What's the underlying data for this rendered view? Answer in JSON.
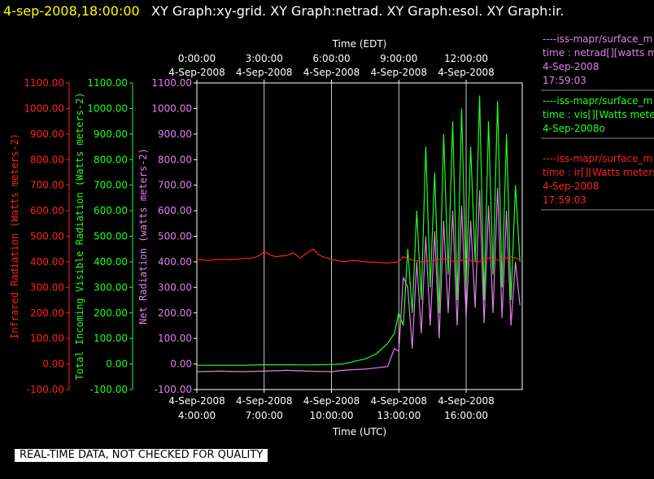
{
  "header": {
    "datetime": "4-sep-2008,18:00:00",
    "titles": "XY Graph:xy-grid.  XY Graph:netrad.  XY Graph:esol.  XY Graph:ir."
  },
  "notice": "REAL-TIME DATA, NOT CHECKED FOR QUALITY",
  "colors": {
    "background": "#000000",
    "infrared": "#ff2020",
    "visible": "#20ff20",
    "net": "#e080e8",
    "axis": "#ffffff",
    "header_date": "#ffff00"
  },
  "chart_data": {
    "type": "line",
    "x_axis_top": {
      "label": "Time (EDT)",
      "ticks": [
        {
          "time": "0:00:00",
          "date": "4-Sep-2008"
        },
        {
          "time": "3:00:00",
          "date": "4-Sep-2008"
        },
        {
          "time": "6:00:00",
          "date": "4-Sep-2008"
        },
        {
          "time": "9:00:00",
          "date": "4-Sep-2008"
        },
        {
          "time": "12:00:00",
          "date": "4-Sep-2008"
        }
      ]
    },
    "x_axis_bottom": {
      "label": "Time (UTC)",
      "ticks": [
        {
          "hour": 4,
          "date": "4-Sep-2008",
          "time": "4:00:00"
        },
        {
          "hour": 7,
          "date": "4-Sep-2008",
          "time": "7:00:00"
        },
        {
          "hour": 10,
          "date": "4-Sep-2008",
          "time": "10:00:00"
        },
        {
          "hour": 13,
          "date": "4-Sep-2008",
          "time": "13:00:00"
        },
        {
          "hour": 16,
          "date": "4-Sep-2008",
          "time": "16:00:00"
        }
      ],
      "xlim_hours_utc": [
        4,
        18.5
      ]
    },
    "y_axes": [
      {
        "id": "infrared",
        "label": "Infrared Radiation (Watts meters-2)",
        "ylim": [
          -100,
          1100
        ],
        "ticks": [
          "-100.00",
          "0.00",
          "100.00",
          "200.00",
          "300.00",
          "400.00",
          "500.00",
          "600.00",
          "700.00",
          "800.00",
          "900.00",
          "1000.00",
          "1100.00"
        ]
      },
      {
        "id": "visible",
        "label": "Total Incoming Visible Radiation (Watts meters-2)",
        "ylim": [
          -100,
          1100
        ],
        "ticks": [
          "-100.00",
          "0.00",
          "100.00",
          "200.00",
          "300.00",
          "400.00",
          "500.00",
          "600.00",
          "700.00",
          "800.00",
          "900.00",
          "1000.00",
          "1100.00"
        ]
      },
      {
        "id": "net",
        "label": "Net Radiation (watts meters-2)",
        "ylim": [
          -100,
          1100
        ],
        "ticks": [
          "-100.00",
          "0.00",
          "100.00",
          "200.00",
          "300.00",
          "400.00",
          "500.00",
          "600.00",
          "700.00",
          "800.00",
          "900.00",
          "1000.00",
          "1100.00"
        ]
      }
    ],
    "grid_x_hours_utc": [
      7,
      10,
      13,
      16
    ],
    "series": [
      {
        "id": "infrared",
        "x": [
          4.0,
          4.5,
          5.0,
          5.5,
          6.0,
          6.5,
          6.8,
          7.0,
          7.2,
          7.5,
          8.0,
          8.3,
          8.6,
          9.0,
          9.2,
          9.4,
          9.6,
          10.0,
          10.5,
          11.0,
          11.5,
          12.0,
          12.5,
          13.0,
          13.2,
          13.5,
          14.0,
          14.5,
          15.0,
          15.5,
          16.0,
          16.5,
          17.0,
          17.5,
          18.0,
          18.4
        ],
        "y": [
          410,
          405,
          410,
          408,
          412,
          415,
          425,
          440,
          430,
          420,
          425,
          435,
          415,
          440,
          450,
          430,
          420,
          410,
          400,
          405,
          400,
          398,
          395,
          400,
          420,
          410,
          400,
          405,
          412,
          400,
          410,
          398,
          415,
          405,
          420,
          410
        ]
      },
      {
        "id": "visible",
        "x": [
          4.0,
          5.0,
          6.0,
          7.0,
          8.0,
          9.0,
          10.0,
          10.5,
          11.0,
          11.5,
          12.0,
          12.5,
          12.8,
          13.0,
          13.2,
          13.4,
          13.6,
          13.8,
          14.0,
          14.2,
          14.4,
          14.6,
          14.8,
          15.0,
          15.2,
          15.4,
          15.6,
          15.8,
          16.0,
          16.2,
          16.4,
          16.6,
          16.8,
          17.0,
          17.2,
          17.4,
          17.6,
          17.8,
          18.0,
          18.2,
          18.4
        ],
        "y": [
          -5,
          -5,
          -5,
          -3,
          -3,
          -4,
          -2,
          0,
          10,
          20,
          40,
          80,
          120,
          200,
          150,
          450,
          200,
          600,
          250,
          850,
          300,
          750,
          200,
          900,
          350,
          950,
          250,
          1000,
          300,
          850,
          400,
          1050,
          250,
          950,
          350,
          1030,
          300,
          900,
          250,
          700,
          400
        ]
      },
      {
        "id": "net",
        "x": [
          4.0,
          5.0,
          6.0,
          7.0,
          8.0,
          9.0,
          10.0,
          10.5,
          11.0,
          11.5,
          12.0,
          12.5,
          12.8,
          13.0,
          13.2,
          13.4,
          13.6,
          13.8,
          14.0,
          14.2,
          14.4,
          14.6,
          14.8,
          15.0,
          15.2,
          15.4,
          15.6,
          15.8,
          16.0,
          16.2,
          16.4,
          16.6,
          16.8,
          17.0,
          17.2,
          17.4,
          17.6,
          17.8,
          18.0,
          18.2,
          18.4
        ],
        "y": [
          -30,
          -28,
          -30,
          -28,
          -25,
          -28,
          -30,
          -25,
          -22,
          -20,
          -15,
          -10,
          60,
          50,
          340,
          300,
          60,
          400,
          120,
          500,
          150,
          520,
          100,
          560,
          200,
          600,
          150,
          620,
          180,
          560,
          220,
          680,
          160,
          620,
          200,
          690,
          180,
          600,
          150,
          400,
          230
        ]
      }
    ]
  },
  "legend": [
    {
      "id": "legend-netrad",
      "lines": [
        "----iss-mapr/surface_m",
        "time : netrad[][watts m",
        "4-Sep-2008",
        "17:59:03"
      ]
    },
    {
      "id": "legend-vis",
      "lines": [
        "----iss-mapr/surface_m",
        "time : vis[][Watts meter",
        "4-Sep-2008o"
      ]
    },
    {
      "id": "legend-ir",
      "lines": [
        "----iss-mapr/surface_m",
        "time : ir[][Watts meters",
        "4-Sep-2008",
        "17:59:03"
      ]
    }
  ]
}
